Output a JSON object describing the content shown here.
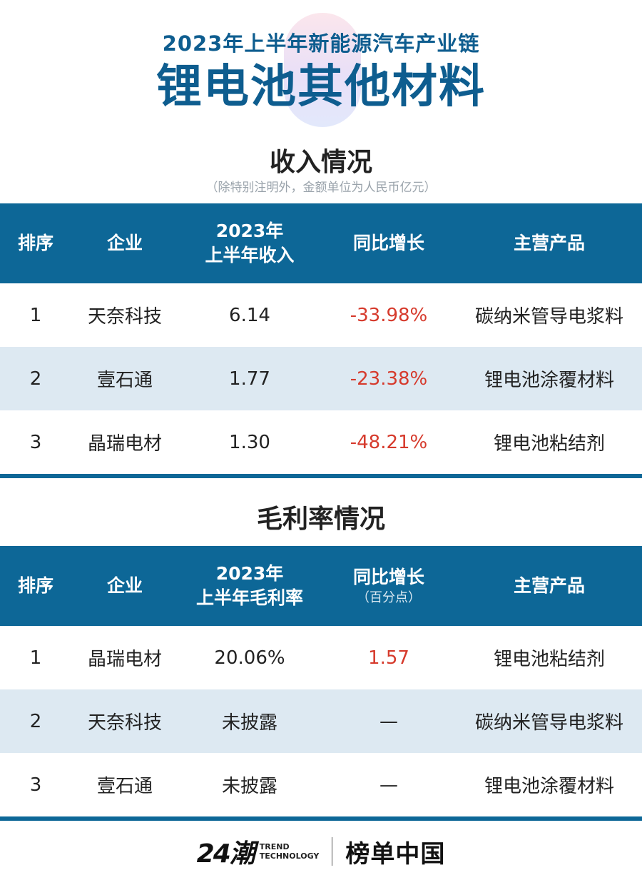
{
  "header": {
    "subtitle": "2023年上半年新能源汽车产业链",
    "title": "锂电池其他材料"
  },
  "revenue": {
    "section_title": "收入情况",
    "note": "（除特别注明外，金额单位为人民币亿元）",
    "headers": {
      "rank": "排序",
      "company": "企业",
      "value_line1": "2023年",
      "value_line2": "上半年收入",
      "growth": "同比增长",
      "product": "主营产品"
    },
    "rows": [
      {
        "rank": "1",
        "company": "天奈科技",
        "value": "6.14",
        "growth": "-33.98%",
        "product": "碳纳米管导电浆料"
      },
      {
        "rank": "2",
        "company": "壹石通",
        "value": "1.77",
        "growth": "-23.38%",
        "product": "锂电池涂覆材料"
      },
      {
        "rank": "3",
        "company": "晶瑞电材",
        "value": "1.30",
        "growth": "-48.21%",
        "product": "锂电池粘结剂"
      }
    ]
  },
  "margin": {
    "section_title": "毛利率情况",
    "headers": {
      "rank": "排序",
      "company": "企业",
      "value_line1": "2023年",
      "value_line2": "上半年毛利率",
      "growth": "同比增长",
      "growth_unit": "（百分点）",
      "product": "主营产品"
    },
    "rows": [
      {
        "rank": "1",
        "company": "晶瑞电材",
        "value": "20.06%",
        "growth": "1.57",
        "product": "锂电池粘结剂"
      },
      {
        "rank": "2",
        "company": "天奈科技",
        "value": "未披露",
        "growth": "—",
        "product": "碳纳米管导电浆料"
      },
      {
        "rank": "3",
        "company": "壹石通",
        "value": "未披露",
        "growth": "—",
        "product": "锂电池涂覆材料"
      }
    ]
  },
  "footer": {
    "logo_number": "24潮",
    "logo_line1": "TREND",
    "logo_line2": "TECHNOLOGY",
    "brand": "榜单中国"
  },
  "colors": {
    "primary": "#0d6797",
    "alt_row": "#dde9f2",
    "negative": "#d63a2c"
  }
}
